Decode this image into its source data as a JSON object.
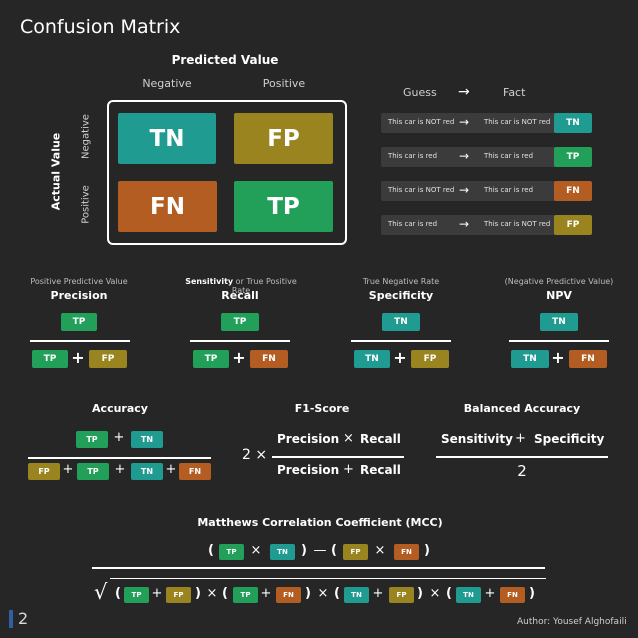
{
  "title": "Confusion Matrix",
  "matrix": {
    "predicted_label": "Predicted Value",
    "actual_label": "Actual Value",
    "col_negative": "Negative",
    "col_positive": "Positive",
    "row_negative": "Negative",
    "row_positive": "Positive",
    "cells": {
      "tn": "TN",
      "fp": "FP",
      "fn": "FN",
      "tp": "TP"
    }
  },
  "guess_fact": {
    "header_guess": "Guess",
    "header_fact": "Fact",
    "arrow": "→",
    "rows": [
      {
        "guess": "This car is NOT red",
        "fact": "This car is NOT red",
        "badge": "TN",
        "color": "#1f9b91"
      },
      {
        "guess": "This car is red",
        "fact": "This car is red",
        "badge": "TP",
        "color": "#22a05a"
      },
      {
        "guess": "This car is NOT red",
        "fact": "This car is red",
        "badge": "FN",
        "color": "#b35d22"
      },
      {
        "guess": "This car is red",
        "fact": "This car is NOT red",
        "badge": "FP",
        "color": "#9a8420"
      }
    ]
  },
  "metrics": {
    "precision": {
      "sub": "Positive Predictive Value",
      "name": "Precision",
      "num": "TP",
      "den_a": "TP",
      "den_b": "FP"
    },
    "recall": {
      "sub_bold": "Sensitivity",
      "sub_rest": " or True Positive Rate",
      "name": "Recall",
      "num": "TP",
      "den_a": "TP",
      "den_b": "FN"
    },
    "specificity": {
      "sub": "True Negative Rate",
      "name": "Specificity",
      "num": "TN",
      "den_a": "TN",
      "den_b": "FP"
    },
    "npv": {
      "sub": "(Negative Predictive Value)",
      "name": "NPV",
      "num": "TN",
      "den_a": "TN",
      "den_b": "FN"
    }
  },
  "accuracy": {
    "name": "Accuracy",
    "num": [
      "TP",
      "TN"
    ],
    "den": [
      "FP",
      "TP",
      "TN",
      "FN"
    ]
  },
  "f1": {
    "name": "F1-Score",
    "factor": "2 ×",
    "num_a": "Precision",
    "num_op": "×",
    "num_b": "Recall",
    "den_a": "Precision",
    "den_op": "+",
    "den_b": "Recall"
  },
  "balanced": {
    "name": "Balanced Accuracy",
    "num_a": "Sensitivity",
    "num_op": "+",
    "num_b": "Specificity",
    "den": "2"
  },
  "mcc": {
    "name": "Matthews Correlation Coefficient (MCC)"
  },
  "symbols": {
    "plus": "+",
    "times": "×",
    "minus": "—",
    "lparen": "(",
    "rparen": ")",
    "sqrt": "√"
  },
  "footer": {
    "page": "2",
    "author": "Author: Yousef Alghofaili"
  },
  "colors": {
    "TN": "#1f9b91",
    "TP": "#22a05a",
    "FN": "#b35d22",
    "FP": "#9a8420",
    "background": "#262626"
  }
}
